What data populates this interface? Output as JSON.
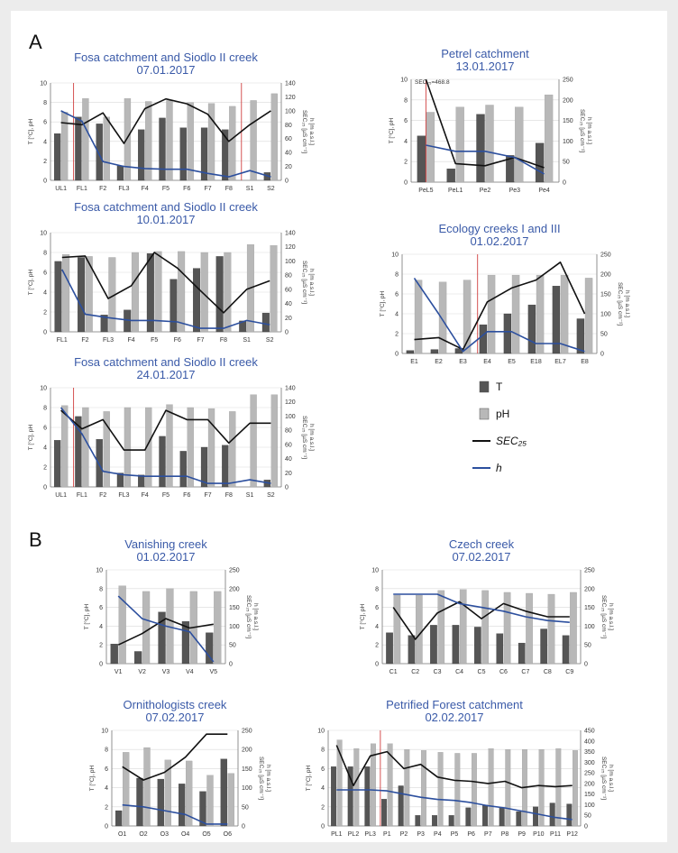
{
  "panels": [
    {
      "label": "A"
    },
    {
      "label": "B"
    }
  ],
  "legend": {
    "items": [
      {
        "label": "T",
        "kind": "bar",
        "color": "#555555"
      },
      {
        "label": "pH",
        "kind": "bar",
        "color": "#b8b8b8"
      },
      {
        "label": "SEC₂₅",
        "kind": "line",
        "color": "#111111"
      },
      {
        "label": "h",
        "kind": "line",
        "color": "#2c4f9e"
      }
    ]
  },
  "chart_data": [
    {
      "id": "fosa-0701",
      "type": "bar-line",
      "title": [
        "Fosa catchment and Siodlo II creek",
        "07.01.2017"
      ],
      "ylabel": "T [°C], pH",
      "y2label": [
        "SEC₂₅ [µS cm⁻¹]",
        "h [m a.s.l.]"
      ],
      "ylim": [
        0,
        10
      ],
      "y2lim": [
        0,
        140
      ],
      "y_ticks": [
        0,
        2,
        4,
        6,
        8,
        10
      ],
      "y2_ticks": [
        0,
        20,
        40,
        60,
        80,
        100,
        120,
        140
      ],
      "categories": [
        "UL1",
        "FL1",
        "F2",
        "FL3",
        "F4",
        "F5",
        "F6",
        "F7",
        "F8",
        "S1",
        "S2"
      ],
      "series": [
        {
          "name": "T",
          "type": "bar",
          "values": [
            4.8,
            6.5,
            5.8,
            1.5,
            5.2,
            6.4,
            5.4,
            5.4,
            5.2,
            null,
            0.8
          ]
        },
        {
          "name": "pH",
          "type": "bar",
          "values": [
            7.0,
            8.4,
            6.5,
            8.4,
            8.1,
            8.2,
            8.0,
            7.9,
            7.6,
            8.2,
            8.9
          ]
        },
        {
          "name": "SEC25",
          "type": "line",
          "values": [
            83,
            80,
            97,
            53,
            103,
            117,
            110,
            95,
            56,
            80,
            100
          ]
        },
        {
          "name": "h",
          "type": "line",
          "values": [
            100,
            85,
            27,
            20,
            17,
            16,
            16,
            10,
            5,
            14,
            5
          ]
        }
      ],
      "vlines": [
        0.6,
        8.6
      ]
    },
    {
      "id": "petrel-1301",
      "type": "bar-line",
      "title": [
        "Petrel catchment",
        "13.01.2017"
      ],
      "ylabel": "T [°C], pH",
      "y2label": [
        "SEC₂₅ [µS cm⁻¹]",
        "h [m a.s.l.]"
      ],
      "ylim": [
        0,
        10
      ],
      "y2lim": [
        0,
        250
      ],
      "y_ticks": [
        0,
        2,
        4,
        6,
        8,
        10
      ],
      "y2_ticks": [
        0,
        50,
        100,
        150,
        200,
        250
      ],
      "categories": [
        "PeL5",
        "PeL1",
        "Pe2",
        "Pe3",
        "Pe4"
      ],
      "series": [
        {
          "name": "T",
          "type": "bar",
          "values": [
            4.5,
            1.3,
            6.6,
            2.6,
            3.8
          ]
        },
        {
          "name": "pH",
          "type": "bar",
          "values": [
            6.8,
            7.3,
            7.5,
            7.3,
            8.5
          ]
        },
        {
          "name": "SEC25",
          "type": "line",
          "values": [
            250,
            45,
            40,
            60,
            35
          ]
        },
        {
          "name": "h",
          "type": "line",
          "values": [
            90,
            75,
            75,
            60,
            20
          ]
        }
      ],
      "vlines": [
        0.0
      ],
      "annotation": "SEC₂₅=468.8"
    },
    {
      "id": "fosa-1001",
      "type": "bar-line",
      "title": [
        "Fosa catchment and Siodlo II creek",
        "10.01.2017"
      ],
      "ylabel": "T [°C], pH",
      "y2label": [
        "SEC₂₅ [µS cm⁻¹]",
        "h [m a.s.l.]"
      ],
      "ylim": [
        0,
        10
      ],
      "y2lim": [
        0,
        140
      ],
      "y_ticks": [
        0,
        2,
        4,
        6,
        8,
        10
      ],
      "y2_ticks": [
        0,
        20,
        40,
        60,
        80,
        100,
        120,
        140
      ],
      "categories": [
        "FL1",
        "F2",
        "FL3",
        "F4",
        "F5",
        "F6",
        "F7",
        "F8",
        "S1",
        "S2"
      ],
      "series": [
        {
          "name": "T",
          "type": "bar",
          "values": [
            7.1,
            7.5,
            1.7,
            2.2,
            7.9,
            5.3,
            6.4,
            7.6,
            1.1,
            1.9
          ]
        },
        {
          "name": "pH",
          "type": "bar",
          "values": [
            7.8,
            7.6,
            7.5,
            8.0,
            8.1,
            8.1,
            8.0,
            8.0,
            8.8,
            8.7
          ]
        },
        {
          "name": "SEC25",
          "type": "line",
          "values": [
            105,
            107,
            47,
            65,
            112,
            90,
            58,
            27,
            60,
            72
          ]
        },
        {
          "name": "h",
          "type": "line",
          "values": [
            88,
            25,
            20,
            16,
            16,
            14,
            5,
            5,
            16,
            10
          ]
        }
      ],
      "vlines": []
    },
    {
      "id": "ecology-0102",
      "type": "bar-line",
      "title": [
        "Ecology creeks I and III",
        "01.02.2017"
      ],
      "ylabel": "T [°C], pH",
      "y2label": [
        "SEC₂₅ [µS cm⁻¹]",
        "h [m a.s.l.]"
      ],
      "ylim": [
        0,
        10
      ],
      "y2lim": [
        0,
        250
      ],
      "y_ticks": [
        0,
        2,
        4,
        6,
        8,
        10
      ],
      "y2_ticks": [
        0,
        50,
        100,
        150,
        200,
        250
      ],
      "categories": [
        "E1",
        "E2",
        "E3",
        "E4",
        "E5",
        "E18",
        "EL7",
        "E8"
      ],
      "series": [
        {
          "name": "T",
          "type": "bar",
          "values": [
            0.3,
            0.4,
            0.5,
            2.9,
            4.0,
            4.9,
            6.8,
            3.5
          ]
        },
        {
          "name": "pH",
          "type": "bar",
          "values": [
            7.4,
            7.2,
            7.4,
            7.9,
            7.9,
            7.9,
            7.9,
            7.6
          ]
        },
        {
          "name": "SEC25",
          "type": "line",
          "values": [
            35,
            40,
            10,
            130,
            165,
            185,
            230,
            100
          ]
        },
        {
          "name": "h",
          "type": "line",
          "values": [
            190,
            100,
            5,
            55,
            55,
            25,
            25,
            5
          ]
        }
      ],
      "vlines": [
        2.6
      ]
    },
    {
      "id": "fosa-2401",
      "type": "bar-line",
      "title": [
        "Fosa catchment and Siodlo II creek",
        "24.01.2017"
      ],
      "ylabel": "T [°C], pH",
      "y2label": [
        "SEC₂₅ [µS cm⁻¹]",
        "h [m a.s.l.]"
      ],
      "ylim": [
        0,
        10
      ],
      "y2lim": [
        0,
        140
      ],
      "y_ticks": [
        0,
        2,
        4,
        6,
        8,
        10
      ],
      "y2_ticks": [
        0,
        20,
        40,
        60,
        80,
        100,
        120,
        140
      ],
      "categories": [
        "UL1",
        "FL1",
        "F2",
        "FL3",
        "F4",
        "F5",
        "F6",
        "F7",
        "F8",
        "S1",
        "S2"
      ],
      "series": [
        {
          "name": "T",
          "type": "bar",
          "values": [
            4.7,
            7.1,
            4.8,
            1.4,
            1.2,
            5.1,
            3.6,
            4.0,
            4.2,
            null,
            0.7
          ]
        },
        {
          "name": "pH",
          "type": "bar",
          "values": [
            8.2,
            8.0,
            7.6,
            8.0,
            8.0,
            8.3,
            8.0,
            7.9,
            7.6,
            9.3,
            9.3
          ]
        },
        {
          "name": "SEC25",
          "type": "line",
          "values": [
            108,
            82,
            95,
            52,
            52,
            108,
            95,
            95,
            62,
            90,
            90
          ]
        },
        {
          "name": "h",
          "type": "line",
          "values": [
            112,
            75,
            22,
            17,
            15,
            15,
            15,
            5,
            5,
            10,
            5
          ]
        }
      ],
      "vlines": [
        0.6
      ]
    },
    {
      "id": "vanishing-0102",
      "type": "bar-line",
      "title": [
        "Vanishing creek",
        "01.02.2017"
      ],
      "ylabel": "T [°C], pH",
      "y2label": [
        "SEC₂₅ [µS cm⁻¹]",
        "h [m a.s.l.]"
      ],
      "ylim": [
        0,
        10
      ],
      "y2lim": [
        0,
        250
      ],
      "y_ticks": [
        0,
        2,
        4,
        6,
        8,
        10
      ],
      "y2_ticks": [
        0,
        50,
        100,
        150,
        200,
        250
      ],
      "categories": [
        "V1",
        "V2",
        "V3",
        "V4",
        "V5"
      ],
      "series": [
        {
          "name": "T",
          "type": "bar",
          "values": [
            2.1,
            1.3,
            5.5,
            4.5,
            3.3
          ]
        },
        {
          "name": "pH",
          "type": "bar",
          "values": [
            8.3,
            7.7,
            8.0,
            7.7,
            7.7
          ]
        },
        {
          "name": "SEC25",
          "type": "line",
          "values": [
            50,
            80,
            120,
            95,
            105
          ]
        },
        {
          "name": "h",
          "type": "line",
          "values": [
            180,
            120,
            100,
            85,
            5
          ]
        }
      ],
      "vlines": []
    },
    {
      "id": "czech-0702",
      "type": "bar-line",
      "title": [
        "Czech creek",
        "07.02.2017"
      ],
      "ylabel": "T [°C], pH",
      "y2label": [
        "SEC₂₅ [µS cm⁻¹]",
        "h [m a.s.l.]"
      ],
      "ylim": [
        0,
        10
      ],
      "y2lim": [
        0,
        250
      ],
      "y_ticks": [
        0,
        2,
        4,
        6,
        8,
        10
      ],
      "y2_ticks": [
        0,
        50,
        100,
        150,
        200,
        250
      ],
      "categories": [
        "C1",
        "C2",
        "C3",
        "C4",
        "C5",
        "C6",
        "C7",
        "C8",
        "C9"
      ],
      "series": [
        {
          "name": "T",
          "type": "bar",
          "values": [
            3.3,
            3.0,
            4.1,
            4.1,
            3.9,
            3.2,
            2.2,
            3.7,
            3.0
          ]
        },
        {
          "name": "pH",
          "type": "bar",
          "values": [
            7.3,
            7.3,
            7.8,
            7.9,
            7.8,
            7.6,
            7.5,
            7.4,
            7.6
          ]
        },
        {
          "name": "SEC25",
          "type": "line",
          "values": [
            150,
            65,
            135,
            165,
            120,
            160,
            140,
            125,
            125
          ]
        },
        {
          "name": "h",
          "type": "line",
          "values": [
            185,
            185,
            185,
            160,
            150,
            140,
            125,
            115,
            110
          ]
        }
      ],
      "vlines": []
    },
    {
      "id": "ornithologists-0702",
      "type": "bar-line",
      "title": [
        "Ornithologists creek",
        "07.02.2017"
      ],
      "ylabel": "T [°C], pH",
      "y2label": [
        "SEC₂₅ [µS cm⁻¹]",
        "h [m a.s.l.]"
      ],
      "ylim": [
        0,
        10
      ],
      "y2lim": [
        0,
        250
      ],
      "y_ticks": [
        0,
        2,
        4,
        6,
        8,
        10
      ],
      "y2_ticks": [
        0,
        50,
        100,
        150,
        200,
        250
      ],
      "categories": [
        "O1",
        "O2",
        "O3",
        "O4",
        "O5",
        "O6"
      ],
      "series": [
        {
          "name": "T",
          "type": "bar",
          "values": [
            1.6,
            5.0,
            4.9,
            4.4,
            3.6,
            7.0
          ]
        },
        {
          "name": "pH",
          "type": "bar",
          "values": [
            7.7,
            8.2,
            6.9,
            6.8,
            5.3,
            5.5
          ]
        },
        {
          "name": "SEC25",
          "type": "line",
          "values": [
            155,
            120,
            140,
            180,
            240,
            240
          ]
        },
        {
          "name": "h",
          "type": "line",
          "values": [
            55,
            50,
            40,
            30,
            5,
            5
          ]
        }
      ],
      "vlines": []
    },
    {
      "id": "petrified-0202",
      "type": "bar-line",
      "title": [
        "Petrified Forest catchment",
        "02.02.2017"
      ],
      "ylabel": "T [°C], pH",
      "y2label": [
        "SEC₂₅ [µS cm⁻¹]",
        "h [m a.s.l.]"
      ],
      "ylim": [
        0,
        10
      ],
      "y2lim": [
        0,
        450
      ],
      "y_ticks": [
        0,
        2,
        4,
        6,
        8,
        10
      ],
      "y2_ticks": [
        0,
        50,
        100,
        150,
        200,
        250,
        300,
        350,
        400,
        450
      ],
      "categories": [
        "PL1",
        "PL2",
        "PL3",
        "P1",
        "P2",
        "P3",
        "P4",
        "P5",
        "P6",
        "P7",
        "P8",
        "P9",
        "P10",
        "P11",
        "P12"
      ],
      "series": [
        {
          "name": "T",
          "type": "bar",
          "values": [
            6.2,
            6.2,
            6.2,
            2.8,
            4.2,
            1.1,
            1.1,
            1.1,
            1.9,
            2.2,
            1.9,
            1.5,
            2.0,
            2.4,
            2.3
          ]
        },
        {
          "name": "pH",
          "type": "bar",
          "values": [
            9.0,
            8.1,
            8.6,
            8.6,
            8.0,
            7.9,
            7.7,
            7.6,
            7.6,
            8.1,
            8.0,
            8.0,
            8.0,
            8.1,
            7.9
          ]
        },
        {
          "name": "SEC25",
          "type": "line",
          "values": [
            380,
            190,
            330,
            350,
            270,
            290,
            230,
            215,
            210,
            200,
            210,
            180,
            190,
            185,
            190
          ]
        },
        {
          "name": "h",
          "type": "line",
          "values": [
            170,
            170,
            170,
            165,
            150,
            135,
            125,
            120,
            110,
            95,
            85,
            70,
            55,
            40,
            30
          ]
        }
      ],
      "vlines": [
        2.6
      ]
    }
  ]
}
